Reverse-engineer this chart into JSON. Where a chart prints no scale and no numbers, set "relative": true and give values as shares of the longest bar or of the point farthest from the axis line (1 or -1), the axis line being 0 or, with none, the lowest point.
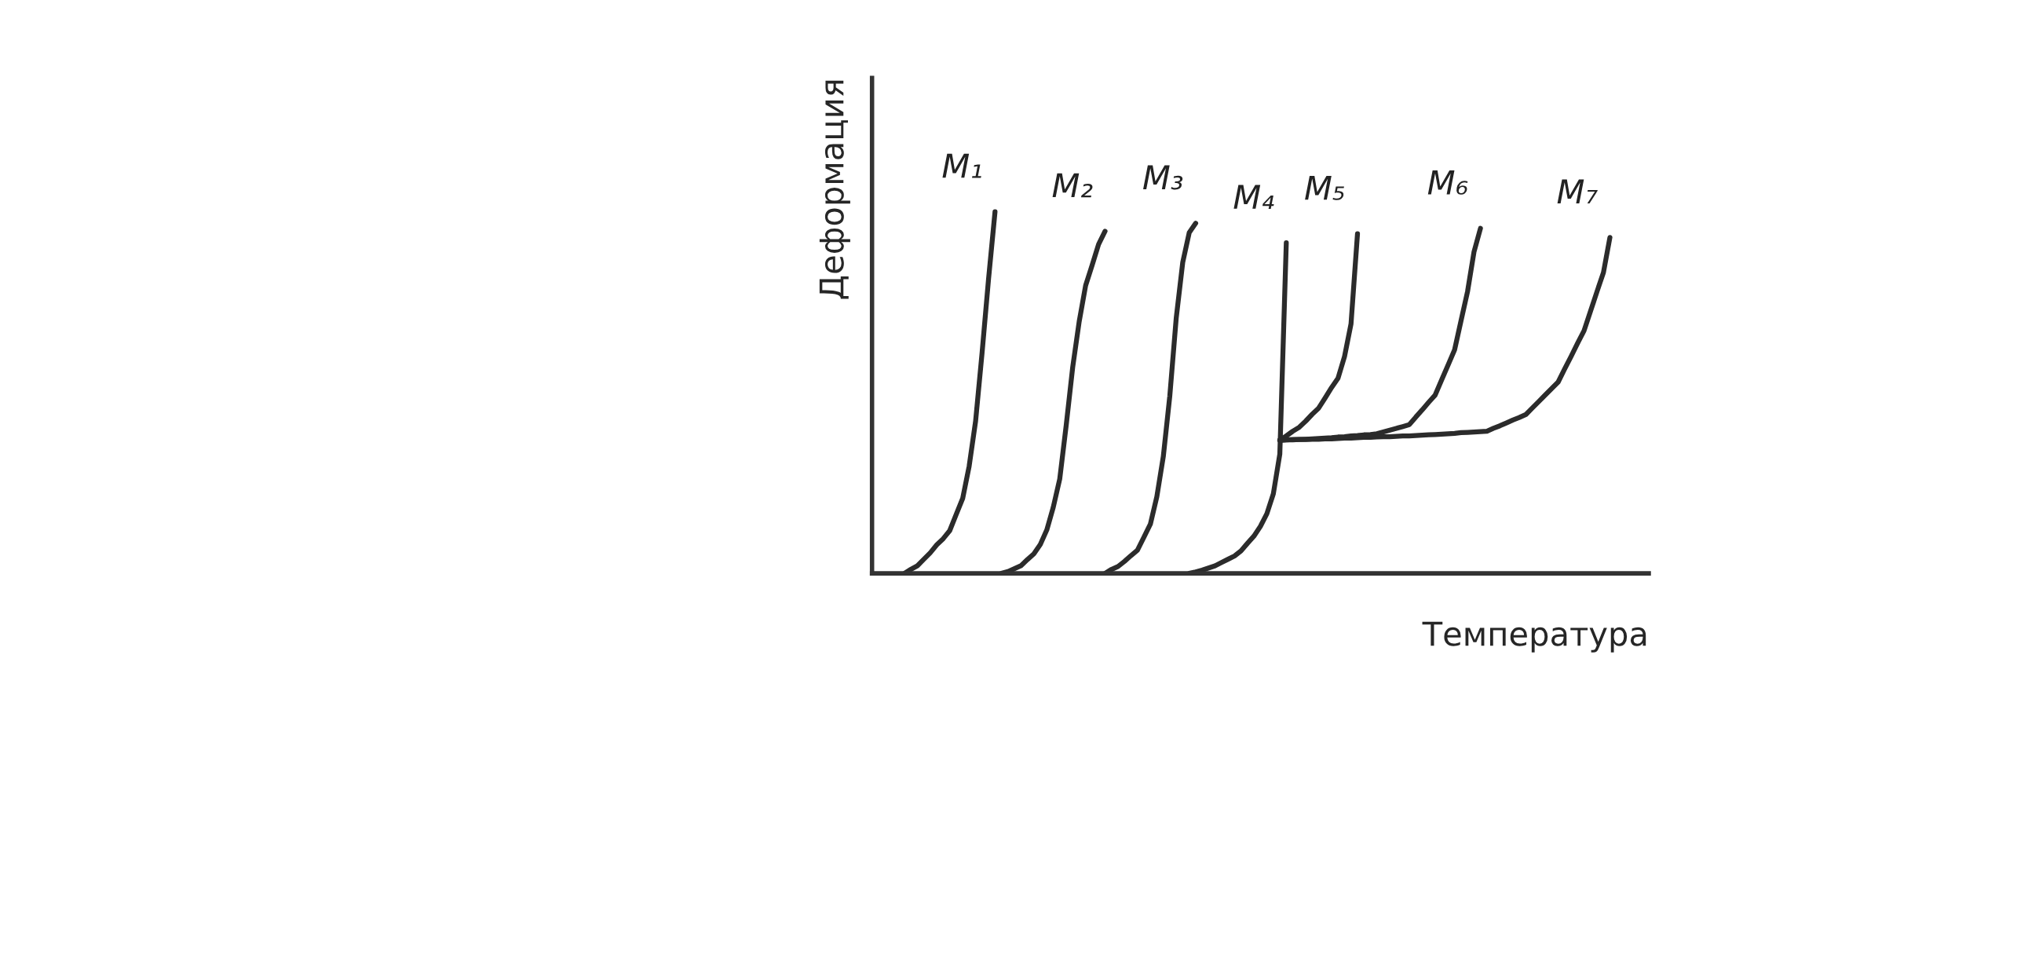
{
  "chart_data": {
    "type": "line",
    "relative": true,
    "xlabel": "Температура",
    "ylabel": "Деформация",
    "legend": false,
    "categories": [
      null,
      null,
      null,
      null,
      null,
      null,
      null,
      null,
      null,
      null,
      null,
      null,
      null,
      null,
      null,
      null,
      null,
      null,
      null,
      null,
      null,
      null,
      null,
      null,
      null,
      null,
      null,
      null,
      null,
      null,
      null,
      null,
      null,
      null,
      null,
      null,
      null,
      null,
      null,
      null,
      null,
      null,
      null,
      null,
      null,
      null,
      null,
      null,
      null,
      null,
      null,
      null,
      null,
      null,
      null,
      null,
      null,
      null,
      null,
      null,
      null,
      null,
      null,
      null,
      null,
      null,
      null,
      null,
      null,
      null,
      null,
      null,
      null,
      null,
      null,
      null,
      null,
      null,
      null,
      null,
      null,
      null,
      null,
      null,
      null,
      null,
      null,
      null,
      null,
      null,
      null,
      null,
      null,
      null,
      null,
      null,
      null,
      null,
      null,
      null,
      null,
      null,
      null,
      null,
      null,
      null,
      null,
      null,
      null,
      null,
      null,
      null,
      null,
      null,
      null,
      null,
      null,
      null,
      null,
      null,
      null
    ],
    "series": [
      {
        "name": "M₁",
        "color": "#2b2b2b",
        "values": [
          null,
          null,
          null,
          null,
          null,
          0,
          0.011,
          0.021,
          0.039,
          0.057,
          0.079,
          0.096,
          0.118,
          0.163,
          0.207,
          0.296,
          0.421,
          0.61,
          0.814,
          1.0,
          null,
          null,
          null,
          null,
          null,
          null,
          null,
          null,
          null,
          null,
          null,
          null,
          null,
          null,
          null,
          null,
          null,
          null,
          null,
          null,
          null,
          null,
          null,
          null,
          null,
          null,
          null,
          null,
          null,
          null,
          null,
          null,
          null,
          null,
          null,
          null,
          null,
          null,
          null,
          null,
          null,
          null,
          null,
          null,
          null,
          null,
          null,
          null,
          null,
          null,
          null,
          null,
          null,
          null,
          null,
          null,
          null,
          null,
          null,
          null,
          null,
          null,
          null,
          null,
          null,
          null,
          null,
          null,
          null,
          null,
          null,
          null,
          null,
          null,
          null,
          null,
          null,
          null,
          null,
          null,
          null,
          null,
          null,
          null,
          null,
          null,
          null,
          null,
          null,
          null,
          null,
          null,
          null,
          null,
          null,
          null,
          null,
          null,
          null,
          null,
          null
        ]
      },
      {
        "name": "M₂",
        "color": "#2b2b2b",
        "values": [
          null,
          null,
          null,
          null,
          null,
          null,
          null,
          null,
          null,
          null,
          null,
          null,
          null,
          null,
          null,
          null,
          null,
          null,
          null,
          null,
          0,
          0.005,
          0.013,
          0.021,
          0.038,
          0.054,
          0.08,
          0.12,
          0.183,
          0.261,
          0.41,
          0.57,
          0.696,
          0.796,
          0.852,
          0.91,
          0.946,
          null,
          null,
          null,
          null,
          null,
          null,
          null,
          null,
          null,
          null,
          null,
          null,
          null,
          null,
          null,
          null,
          null,
          null,
          null,
          null,
          null,
          null,
          null,
          null,
          null,
          null,
          null,
          null,
          null,
          null,
          null,
          null,
          null,
          null,
          null,
          null,
          null,
          null,
          null,
          null,
          null,
          null,
          null,
          null,
          null,
          null,
          null,
          null,
          null,
          null,
          null,
          null,
          null,
          null,
          null,
          null,
          null,
          null,
          null,
          null,
          null,
          null,
          null,
          null,
          null,
          null,
          null,
          null,
          null,
          null,
          null,
          null,
          null,
          null,
          null,
          null,
          null,
          null,
          null,
          null,
          null,
          null,
          null,
          null
        ]
      },
      {
        "name": "M₃",
        "color": "#2b2b2b",
        "values": [
          null,
          null,
          null,
          null,
          null,
          null,
          null,
          null,
          null,
          null,
          null,
          null,
          null,
          null,
          null,
          null,
          null,
          null,
          null,
          null,
          null,
          null,
          null,
          null,
          null,
          null,
          null,
          null,
          null,
          null,
          null,
          null,
          null,
          null,
          null,
          null,
          0,
          0.011,
          0.019,
          0.033,
          0.049,
          0.064,
          0.1,
          0.136,
          0.212,
          0.323,
          0.49,
          0.707,
          0.86,
          0.942,
          0.968,
          null,
          null,
          null,
          null,
          null,
          null,
          null,
          null,
          null,
          null,
          null,
          null,
          null,
          null,
          null,
          null,
          null,
          null,
          null,
          null,
          null,
          null,
          null,
          null,
          null,
          null,
          null,
          null,
          null,
          null,
          null,
          null,
          null,
          null,
          null,
          null,
          null,
          null,
          null,
          null,
          null,
          null,
          null,
          null,
          null,
          null,
          null,
          null,
          null,
          null,
          null,
          null,
          null,
          null,
          null,
          null,
          null,
          null,
          null,
          null,
          null,
          null,
          null,
          null,
          null,
          null,
          null,
          null,
          null,
          null
        ]
      },
      {
        "name": "M₄",
        "color": "#2b2b2b",
        "values": [
          null,
          null,
          null,
          null,
          null,
          null,
          null,
          null,
          null,
          null,
          null,
          null,
          null,
          null,
          null,
          null,
          null,
          null,
          null,
          null,
          null,
          null,
          null,
          null,
          null,
          null,
          null,
          null,
          null,
          null,
          null,
          null,
          null,
          null,
          null,
          null,
          null,
          null,
          null,
          null,
          null,
          null,
          null,
          null,
          null,
          null,
          null,
          null,
          null,
          0,
          0.004,
          0.009,
          0.015,
          0.021,
          0.03,
          0.039,
          0.048,
          0.062,
          0.083,
          0.103,
          0.13,
          0.165,
          0.22,
          0.33,
          0.914,
          null,
          null,
          null,
          null,
          null,
          null,
          null,
          null,
          null,
          null,
          null,
          null,
          null,
          null,
          null,
          null,
          null,
          null,
          null,
          null,
          null,
          null,
          null,
          null,
          null,
          null,
          null,
          null,
          null,
          null,
          null,
          null,
          null,
          null,
          null,
          null,
          null,
          null,
          null,
          null,
          null,
          null,
          null,
          null,
          null,
          null,
          null,
          null,
          null,
          null,
          null,
          null,
          null,
          null,
          null,
          null
        ]
      },
      {
        "name": "M₅",
        "color": "#2b2b2b",
        "values": [
          null,
          null,
          null,
          null,
          null,
          null,
          null,
          null,
          null,
          null,
          null,
          null,
          null,
          null,
          null,
          null,
          null,
          null,
          null,
          null,
          null,
          null,
          null,
          null,
          null,
          null,
          null,
          null,
          null,
          null,
          null,
          null,
          null,
          null,
          null,
          null,
          null,
          null,
          null,
          null,
          null,
          null,
          null,
          null,
          null,
          null,
          null,
          null,
          null,
          null,
          null,
          null,
          null,
          null,
          null,
          null,
          null,
          null,
          null,
          null,
          null,
          null,
          null,
          0.368,
          0.38,
          0.393,
          0.404,
          0.421,
          0.44,
          0.457,
          0.485,
          0.514,
          0.54,
          0.6,
          0.69,
          0.939,
          null,
          null,
          null,
          null,
          null,
          null,
          null,
          null,
          null,
          null,
          null,
          null,
          null,
          null,
          null,
          null,
          null,
          null,
          null,
          null,
          null,
          null,
          null,
          null,
          null,
          null,
          null,
          null,
          null,
          null,
          null,
          null,
          null,
          null,
          null,
          null,
          null,
          null,
          null,
          null,
          null,
          null,
          null,
          null,
          null
        ]
      },
      {
        "name": "M₆",
        "color": "#2b2b2b",
        "values": [
          null,
          null,
          null,
          null,
          null,
          null,
          null,
          null,
          null,
          null,
          null,
          null,
          null,
          null,
          null,
          null,
          null,
          null,
          null,
          null,
          null,
          null,
          null,
          null,
          null,
          null,
          null,
          null,
          null,
          null,
          null,
          null,
          null,
          null,
          null,
          null,
          null,
          null,
          null,
          null,
          null,
          null,
          null,
          null,
          null,
          null,
          null,
          null,
          null,
          null,
          null,
          null,
          null,
          null,
          null,
          null,
          null,
          null,
          null,
          null,
          null,
          null,
          null,
          0.368,
          0.369,
          0.37,
          0.37,
          0.371,
          0.372,
          0.373,
          0.374,
          0.375,
          0.377,
          0.378,
          0.38,
          0.381,
          0.383,
          0.384,
          0.386,
          0.391,
          0.396,
          0.401,
          0.406,
          0.411,
          0.432,
          0.452,
          0.473,
          0.493,
          0.535,
          0.576,
          0.618,
          0.699,
          0.779,
          0.889,
          0.954,
          null,
          null,
          null,
          null,
          null,
          null,
          null,
          null,
          null,
          null,
          null,
          null,
          null,
          null,
          null,
          null,
          null,
          null,
          null,
          null,
          null,
          null,
          null,
          null,
          null,
          null
        ]
      },
      {
        "name": "M₇",
        "color": "#2b2b2b",
        "values": [
          null,
          null,
          null,
          null,
          null,
          null,
          null,
          null,
          null,
          null,
          null,
          null,
          null,
          null,
          null,
          null,
          null,
          null,
          null,
          null,
          null,
          null,
          null,
          null,
          null,
          null,
          null,
          null,
          null,
          null,
          null,
          null,
          null,
          null,
          null,
          null,
          null,
          null,
          null,
          null,
          null,
          null,
          null,
          null,
          null,
          null,
          null,
          null,
          null,
          null,
          null,
          null,
          null,
          null,
          null,
          null,
          null,
          null,
          null,
          null,
          null,
          null,
          null,
          0.368,
          0.369,
          0.369,
          0.37,
          0.37,
          0.371,
          0.371,
          0.372,
          0.372,
          0.373,
          0.374,
          0.374,
          0.375,
          0.376,
          0.376,
          0.377,
          0.378,
          0.378,
          0.379,
          0.38,
          0.38,
          0.381,
          0.382,
          0.383,
          0.384,
          0.385,
          0.386,
          0.387,
          0.389,
          0.39,
          0.391,
          0.392,
          0.393,
          0.401,
          0.408,
          0.416,
          0.424,
          0.431,
          0.439,
          0.457,
          0.475,
          0.493,
          0.511,
          0.529,
          0.565,
          0.6,
          0.636,
          0.671,
          0.725,
          0.779,
          0.832,
          0.929,
          null,
          null,
          null,
          null,
          null,
          null
        ]
      }
    ]
  }
}
